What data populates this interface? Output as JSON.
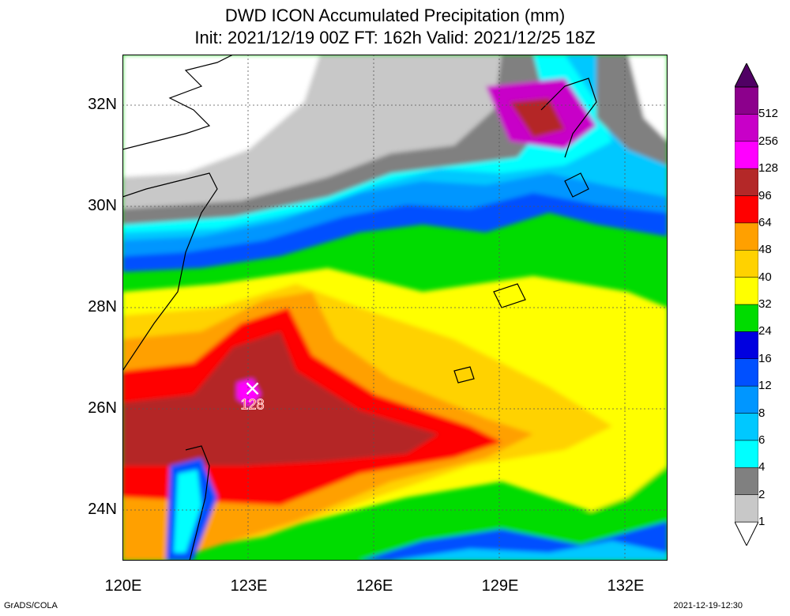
{
  "title_line1": "DWD ICON Accumulated Precipitation (mm)",
  "title_line2": "Init: 2021/12/19 00Z  FT: 162h  Valid: 2021/12/25 18Z",
  "lon_labels": [
    "120E",
    "123E",
    "126E",
    "129E",
    "132E"
  ],
  "lat_labels": [
    "32N",
    "30N",
    "28N",
    "26N",
    "24N"
  ],
  "extent": {
    "lon": [
      120,
      133
    ],
    "lat": [
      23,
      33
    ]
  },
  "max_marker": {
    "label": "128",
    "lon": 123.1,
    "lat": 26.4,
    "value": 128
  },
  "colorbar": {
    "levels": [
      "1",
      "2",
      "4",
      "6",
      "8",
      "12",
      "16",
      "24",
      "32",
      "40",
      "48",
      "64",
      "96",
      "128",
      "256",
      "512"
    ],
    "colors": [
      "#ffffff",
      "#c8c8c8",
      "#808080",
      "#00ffff",
      "#00c8ff",
      "#0096ff",
      "#0050ff",
      "#0000e0",
      "#00dc00",
      "#ffff00",
      "#ffd200",
      "#ffa000",
      "#ff0000",
      "#b42828",
      "#ff00ff",
      "#c800c8",
      "#8c008c",
      "#500064"
    ]
  },
  "credit": "GrADS/COLA",
  "timestamp": "2021-12-19-12:30"
}
